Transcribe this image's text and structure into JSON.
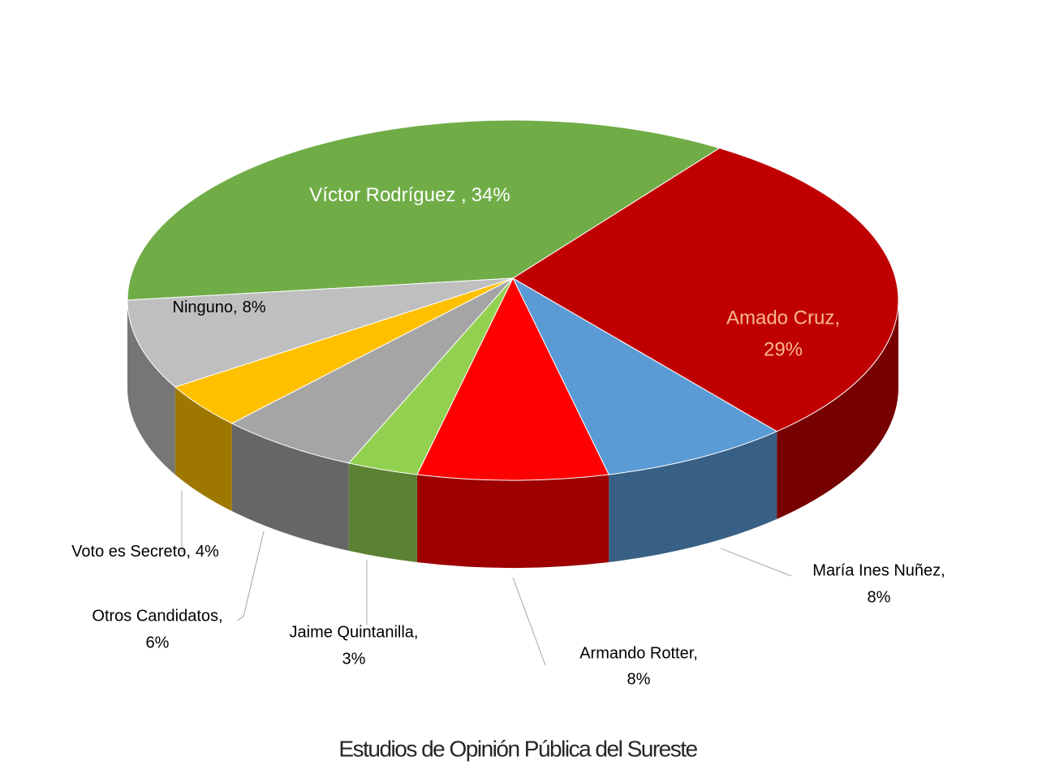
{
  "chart_data": {
    "type": "pie3d",
    "title": "Estudios de Opinión Pública del Sureste",
    "categories": [
      "Víctor Rodríguez ,",
      "Amado Cruz,",
      "María Ines Nuñez,",
      "Armando Rotter,",
      "Jaime Quintanilla,",
      "Otros Candidatos,",
      "Voto es Secreto,",
      "Ninguno,"
    ],
    "values": [
      34,
      29,
      8,
      8,
      3,
      6,
      4,
      8
    ],
    "value_labels": [
      "34%",
      "29%",
      "8%",
      "8%",
      "3%",
      "6%",
      "4%",
      "8%"
    ],
    "colors": [
      "#70ad47",
      "#c00000",
      "#5b9bd5",
      "#ff0000",
      "#92d050",
      "#a5a5a5",
      "#ffc000",
      "#bfbfbf"
    ]
  }
}
